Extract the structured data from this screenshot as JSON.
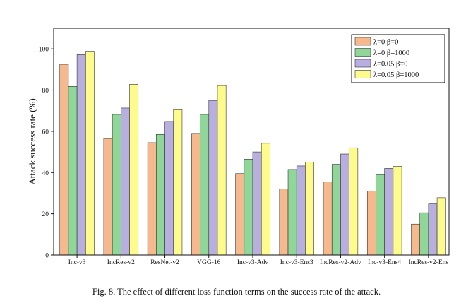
{
  "chart_data": {
    "type": "bar",
    "title": "",
    "xlabel": "",
    "ylabel": "Attack success rate (%)",
    "ylim": [
      0,
      110
    ],
    "yticks": [
      0,
      20,
      40,
      60,
      80,
      100
    ],
    "categories": [
      "Inc-v3",
      "IncRes-v2",
      "ResNet-v2",
      "VGG-16",
      "Inc-v3-Adv",
      "Inc-v3-Ens3",
      "IncRes-v2-Adv",
      "Inc-v3-Ens4",
      "IncRes-v2-Ens"
    ],
    "series": [
      {
        "name": "λ=0 β=0",
        "color": "#f6b98e",
        "values": [
          92.5,
          56.5,
          54.5,
          59.0,
          39.5,
          32.0,
          35.5,
          31.0,
          15.0
        ]
      },
      {
        "name": "λ=0 β=1000",
        "color": "#90d699",
        "values": [
          81.8,
          68.2,
          58.5,
          68.2,
          46.5,
          41.5,
          44.0,
          39.0,
          20.5
        ]
      },
      {
        "name": "λ=0.05 β=0",
        "color": "#b8aee0",
        "values": [
          97.2,
          71.3,
          64.8,
          75.0,
          50.0,
          43.2,
          49.0,
          42.0,
          24.8
        ]
      },
      {
        "name": "λ=0.05 β=1000",
        "color": "#fdfb8c",
        "values": [
          98.8,
          82.8,
          70.5,
          82.2,
          54.2,
          45.0,
          52.0,
          43.0,
          27.8
        ]
      }
    ],
    "legend_position": "top-right"
  },
  "caption": "Fig. 8. The effect of different loss function terms on the success rate of the attack."
}
